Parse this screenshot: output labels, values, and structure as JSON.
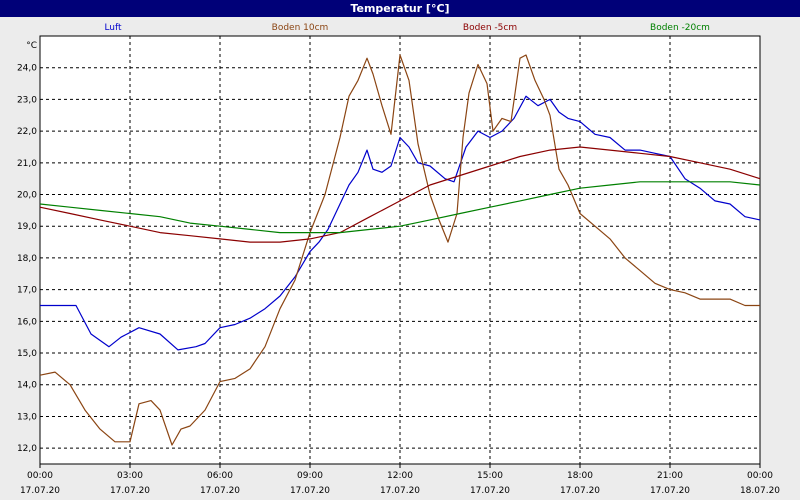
{
  "window": {
    "title": "Temperatur [°C]"
  },
  "chart_data": {
    "type": "line",
    "title": "Temperatur [°C]",
    "ylabel": "°C",
    "xlabel": "",
    "ylim": [
      11.5,
      25.0
    ],
    "xlim": [
      0,
      24
    ],
    "grid": true,
    "legend_position": "top",
    "y_ticks": [
      "12,0",
      "13,0",
      "14,0",
      "15,0",
      "16,0",
      "17,0",
      "18,0",
      "19,0",
      "20,0",
      "21,0",
      "22,0",
      "23,0",
      "24,0"
    ],
    "y_tick_values": [
      12,
      13,
      14,
      15,
      16,
      17,
      18,
      19,
      20,
      21,
      22,
      23,
      24
    ],
    "x_ticks": [
      {
        "time": "00:00",
        "date": "17.07.20",
        "x": 0
      },
      {
        "time": "03:00",
        "date": "17.07.20",
        "x": 3
      },
      {
        "time": "06:00",
        "date": "17.07.20",
        "x": 6
      },
      {
        "time": "09:00",
        "date": "17.07.20",
        "x": 9
      },
      {
        "time": "12:00",
        "date": "17.07.20",
        "x": 12
      },
      {
        "time": "15:00",
        "date": "17.07.20",
        "x": 15
      },
      {
        "time": "18:00",
        "date": "17.07.20",
        "x": 18
      },
      {
        "time": "21:00",
        "date": "17.07.20",
        "x": 21
      },
      {
        "time": "00:00",
        "date": "18.07.20",
        "x": 24
      }
    ],
    "series": [
      {
        "name": "Luft",
        "color": "#0000cc",
        "x": [
          0,
          1.2,
          1.7,
          2.3,
          2.7,
          3.3,
          4.0,
          4.6,
          5.2,
          5.5,
          6.0,
          6.5,
          7.0,
          7.5,
          8.0,
          8.5,
          9.0,
          9.3,
          9.6,
          10.0,
          10.3,
          10.6,
          10.9,
          11.1,
          11.4,
          11.7,
          12.0,
          12.3,
          12.6,
          13.0,
          13.5,
          13.8,
          14.2,
          14.6,
          15.0,
          15.4,
          15.8,
          16.2,
          16.6,
          17.0,
          17.3,
          17.6,
          18.0,
          18.5,
          19.0,
          19.5,
          20.0,
          20.5,
          21.0,
          21.5,
          22.0,
          22.5,
          23.0,
          23.5,
          24.0
        ],
        "y": [
          16.5,
          16.5,
          15.6,
          15.2,
          15.5,
          15.8,
          15.6,
          15.1,
          15.2,
          15.3,
          15.8,
          15.9,
          16.1,
          16.4,
          16.8,
          17.4,
          18.2,
          18.5,
          18.9,
          19.7,
          20.3,
          20.7,
          21.4,
          20.8,
          20.7,
          20.9,
          21.8,
          21.5,
          21.0,
          20.9,
          20.5,
          20.4,
          21.5,
          22.0,
          21.8,
          22.0,
          22.4,
          23.1,
          22.8,
          23.0,
          22.6,
          22.4,
          22.3,
          21.9,
          21.8,
          21.4,
          21.4,
          21.3,
          21.2,
          20.5,
          20.2,
          19.8,
          19.7,
          19.3,
          19.2
        ]
      },
      {
        "name": "Boden 10cm",
        "color": "#8b4513",
        "x": [
          0,
          0.5,
          1.0,
          1.5,
          2.0,
          2.5,
          3.0,
          3.3,
          3.7,
          4.0,
          4.4,
          4.7,
          5.0,
          5.5,
          6.0,
          6.5,
          7.0,
          7.5,
          8.0,
          8.5,
          9.0,
          9.5,
          10.0,
          10.3,
          10.6,
          10.9,
          11.1,
          11.4,
          11.7,
          12.0,
          12.3,
          12.6,
          13.0,
          13.3,
          13.6,
          13.9,
          14.1,
          14.3,
          14.6,
          14.9,
          15.1,
          15.4,
          15.7,
          16.0,
          16.2,
          16.5,
          16.8,
          17.0,
          17.3,
          17.6,
          18.0,
          18.5,
          19.0,
          19.5,
          20.0,
          20.5,
          21.0,
          21.5,
          22.0,
          22.5,
          23.0,
          23.5,
          24.0
        ],
        "y": [
          14.3,
          14.4,
          14.0,
          13.2,
          12.6,
          12.2,
          12.2,
          13.4,
          13.5,
          13.2,
          12.1,
          12.6,
          12.7,
          13.2,
          14.1,
          14.2,
          14.5,
          15.2,
          16.4,
          17.3,
          18.8,
          20.0,
          21.8,
          23.1,
          23.6,
          24.3,
          23.8,
          22.8,
          21.9,
          24.4,
          23.6,
          21.6,
          20.0,
          19.2,
          18.5,
          19.4,
          21.8,
          23.2,
          24.1,
          23.5,
          22.0,
          22.4,
          22.3,
          24.3,
          24.4,
          23.6,
          23.0,
          22.5,
          20.8,
          20.3,
          19.4,
          19.0,
          18.6,
          18.0,
          17.6,
          17.2,
          17.0,
          16.9,
          16.7,
          16.7,
          16.7,
          16.5,
          16.5
        ]
      },
      {
        "name": "Boden -5cm",
        "color": "#8b0000",
        "x": [
          0,
          1.0,
          2.0,
          3.0,
          4.0,
          5.0,
          6.0,
          7.0,
          8.0,
          9.0,
          10.0,
          11.0,
          12.0,
          13.0,
          14.0,
          15.0,
          16.0,
          17.0,
          18.0,
          19.0,
          20.0,
          21.0,
          22.0,
          23.0,
          24.0
        ],
        "y": [
          19.6,
          19.4,
          19.2,
          19.0,
          18.8,
          18.7,
          18.6,
          18.5,
          18.5,
          18.6,
          18.8,
          19.3,
          19.8,
          20.3,
          20.6,
          20.9,
          21.2,
          21.4,
          21.5,
          21.4,
          21.3,
          21.2,
          21.0,
          20.8,
          20.5
        ]
      },
      {
        "name": "Boden -20cm",
        "color": "#008000",
        "x": [
          0,
          1.0,
          2.0,
          3.0,
          4.0,
          5.0,
          6.0,
          7.0,
          8.0,
          9.0,
          10.0,
          11.0,
          12.0,
          13.0,
          14.0,
          15.0,
          16.0,
          17.0,
          18.0,
          19.0,
          20.0,
          21.0,
          22.0,
          23.0,
          24.0
        ],
        "y": [
          19.7,
          19.6,
          19.5,
          19.4,
          19.3,
          19.1,
          19.0,
          18.9,
          18.8,
          18.8,
          18.8,
          18.9,
          19.0,
          19.2,
          19.4,
          19.6,
          19.8,
          20.0,
          20.2,
          20.3,
          20.4,
          20.4,
          20.4,
          20.4,
          20.3
        ]
      }
    ]
  }
}
